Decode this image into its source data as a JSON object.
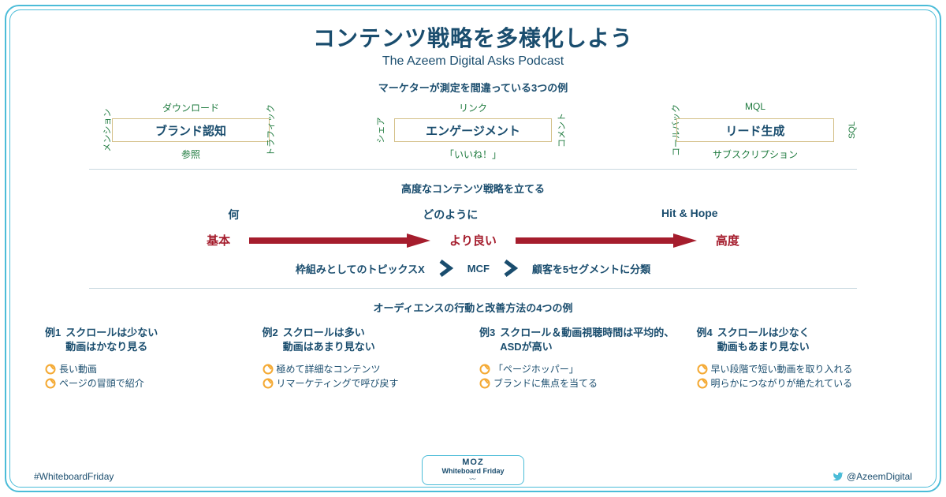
{
  "colors": {
    "primary": "#1a4d6e",
    "accent": "#4bbcd8",
    "green": "#1e7a3e",
    "red": "#a51d2d",
    "box_border": "#d4c088",
    "arrow_orange": "#f4a933"
  },
  "title": "コンテンツ戦略を多様化しよう",
  "subtitle": "The Azeem Digital Asks Podcast",
  "section1": {
    "heading": "マーケターが測定を間違っている3つの例",
    "items": [
      {
        "center": "ブランド認知",
        "top": "ダウンロード",
        "bottom": "参照",
        "left": "メンション",
        "right": "トラフィック"
      },
      {
        "center": "エンゲージメント",
        "top": "リンク",
        "bottom": "「いいね！」",
        "left": "シェア",
        "right": "コメント"
      },
      {
        "center": "リード生成",
        "top": "MQL",
        "bottom": "サブスクリプション",
        "left": "コールバック",
        "right": "SQL"
      }
    ]
  },
  "section2": {
    "heading": "高度なコンテンツ戦略を立てる",
    "cols": [
      "何",
      "どのように",
      "Hit & Hope"
    ],
    "levels": [
      "基本",
      "より良い",
      "高度"
    ],
    "chevs": [
      "枠組みとしてのトピックスX",
      "MCF",
      "顧客を5セグメントに分類"
    ]
  },
  "section3": {
    "heading": "オーディエンスの行動と改善方法の4つの例",
    "examples": [
      {
        "num": "例1",
        "title": "スクロールは少ない\n動画はかなり見る",
        "bullets": [
          "長い動画",
          "ページの冒頭で紹介"
        ]
      },
      {
        "num": "例2",
        "title": "スクロールは多い\n動画はあまり見ない",
        "bullets": [
          "極めて詳細なコンテンツ",
          "リマーケティングで呼び戻す"
        ]
      },
      {
        "num": "例3",
        "title": "スクロール＆動画視聴時間は平均的、ASDが高い",
        "bullets": [
          "「ページホッパー」",
          "ブランドに焦点を当てる"
        ]
      },
      {
        "num": "例4",
        "title": "スクロールは少なく\n動画もあまり見ない",
        "bullets": [
          "早い段階で短い動画を取り入れる",
          "明らかにつながりが絶たれている"
        ]
      }
    ]
  },
  "footer": {
    "hashtag": "#WhiteboardFriday",
    "handle": "@AzeemDigital",
    "badge_l1": "MOZ",
    "badge_l2": "Whiteboard Friday"
  }
}
